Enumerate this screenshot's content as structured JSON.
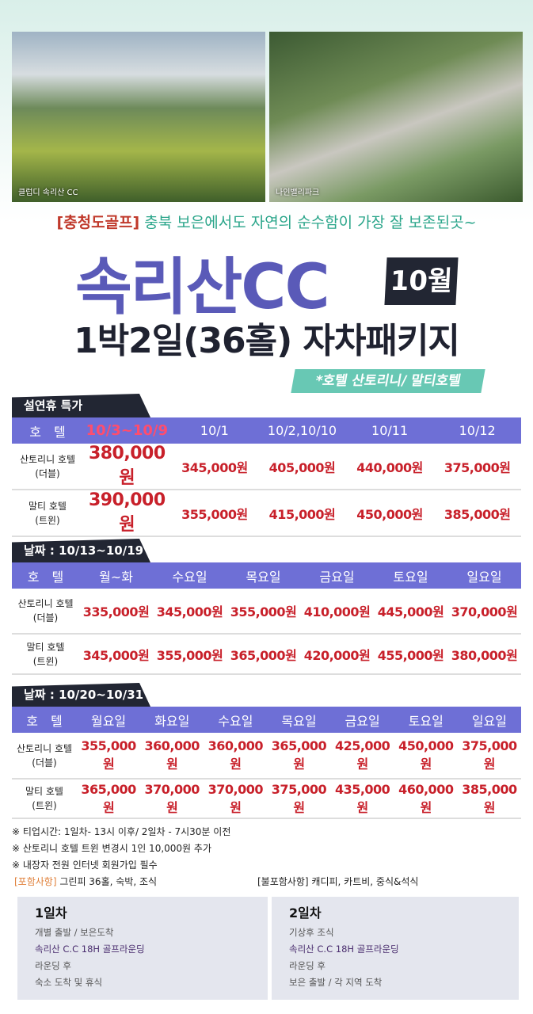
{
  "photos": [
    {
      "label": "클럽디 속리산 CC"
    },
    {
      "label": "나인밸리파크"
    }
  ],
  "subtitle": {
    "bracket": "[충청도골프]",
    "text": "충북 보은에서도 자연의 순수함이 가장 잘 보존된곳~"
  },
  "title": "속리산CC",
  "month_badge": "10월",
  "title2": "1박2일(36홀) 자차패키지",
  "hotel_tag": "*호텔 산토리니/ 말티호텔",
  "tables": [
    {
      "tab": "설연휴 특가",
      "headers": [
        "호　텔",
        "10/3~10/9",
        "10/1",
        "10/2,10/10",
        "10/11",
        "10/12"
      ],
      "rows": [
        {
          "hotel": "산토리니 호텔",
          "type": "(더블)",
          "prices": [
            "380,000원",
            "345,000원",
            "405,000원",
            "440,000원",
            "375,000원"
          ]
        },
        {
          "hotel": "말티 호텔",
          "type": "(트윈)",
          "prices": [
            "390,000원",
            "355,000원",
            "415,000원",
            "450,000원",
            "385,000원"
          ]
        }
      ]
    },
    {
      "tab": "날짜 : 10/13~10/19",
      "headers": [
        "호　텔",
        "월~화",
        "수요일",
        "목요일",
        "금요일",
        "토요일",
        "일요일"
      ],
      "rows": [
        {
          "hotel": "산토리니 호텔",
          "type": "(더블)",
          "prices": [
            "335,000원",
            "345,000원",
            "355,000원",
            "410,000원",
            "445,000원",
            "370,000원"
          ]
        },
        {
          "hotel": "말티 호텔",
          "type": "(트윈)",
          "prices": [
            "345,000원",
            "355,000원",
            "365,000원",
            "420,000원",
            "455,000원",
            "380,000원"
          ]
        }
      ]
    },
    {
      "tab": "날짜 : 10/20~10/31",
      "headers": [
        "호　텔",
        "월요일",
        "화요일",
        "수요일",
        "목요일",
        "금요일",
        "토요일",
        "일요일"
      ],
      "rows": [
        {
          "hotel": "산토리니 호텔",
          "type": "(더블)",
          "prices": [
            "355,000원",
            "360,000원",
            "360,000원",
            "365,000원",
            "425,000원",
            "450,000원",
            "375,000원"
          ]
        },
        {
          "hotel": "말티 호텔",
          "type": "(트윈)",
          "prices": [
            "365,000원",
            "370,000원",
            "370,000원",
            "375,000원",
            "435,000원",
            "460,000원",
            "385,000원"
          ]
        }
      ]
    }
  ],
  "notes": [
    "※ 티업시간: 1일차- 13시 이후/  2일차 - 7시30분 이전",
    "※ 산토리니 호텔 트윈 변경시 1인 10,000원 추가",
    "※ 내장자 전원 인터넷 회원가입 필수"
  ],
  "included": {
    "label": "[포함사항]",
    "text": "그린피 36홀, 숙박, 조식"
  },
  "excluded": {
    "label": "[불포함사항]",
    "text": "캐디피, 카트비, 중식&석식"
  },
  "days": [
    {
      "title": "1일차",
      "items": [
        "개별 출발 / 보은도착",
        "속리산 C.C 18H 골프라운딩",
        "라운딩 후",
        "숙소 도착 및 휴식"
      ]
    },
    {
      "title": "2일차",
      "items": [
        "기상후  조식",
        "속리산 C.C 18H 골프라운딩",
        "라운딩 후",
        "보은  출발 / 각 지역 도착"
      ]
    }
  ]
}
